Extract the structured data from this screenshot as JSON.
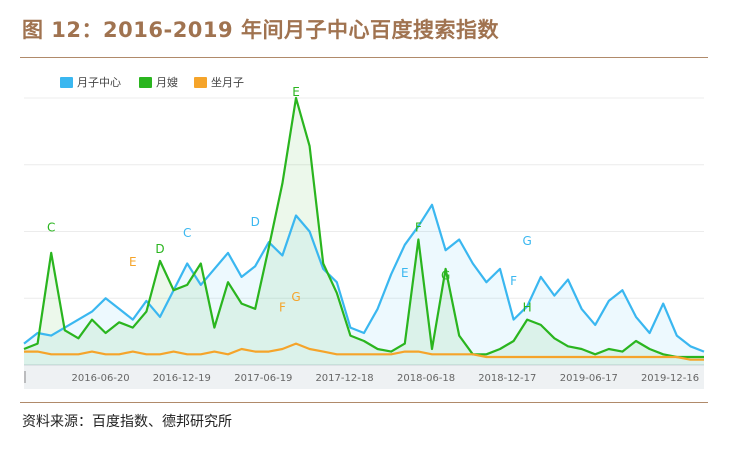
{
  "figure": {
    "title": "图 12：2016-2019 年间月子中心百度搜索指数",
    "source": "资料来源：百度指数、德邦研究所"
  },
  "colors": {
    "yuezi_zhongxin": "#3ab7f0",
    "yuesao": "#2ab51f",
    "zuo_yuezi": "#f5a42a",
    "title": "#a07350"
  },
  "chart_data": {
    "type": "line",
    "title": "",
    "xlabel": "",
    "ylabel": "",
    "legend_position": "top-left",
    "grid": "horizontal",
    "x_ticks": [
      "2016-06-20",
      "2016-12-19",
      "2017-06-19",
      "2017-12-18",
      "2018-06-18",
      "2018-12-17",
      "2019-06-17",
      "2019-12-16"
    ],
    "x_range": [
      "2016-01",
      "2020-03"
    ],
    "ylim": [
      0,
      100
    ],
    "series": [
      {
        "name": "月子中心",
        "color": "#3ab7f0",
        "fill": true,
        "points": [
          [
            "2016-01",
            8
          ],
          [
            "2016-02",
            12
          ],
          [
            "2016-03",
            11
          ],
          [
            "2016-04",
            14
          ],
          [
            "2016-05",
            17
          ],
          [
            "2016-06",
            20
          ],
          [
            "2016-07",
            25
          ],
          [
            "2016-08",
            21
          ],
          [
            "2016-09",
            17
          ],
          [
            "2016-10",
            24
          ],
          [
            "2016-11",
            18
          ],
          [
            "2016-12",
            28
          ],
          [
            "2017-01",
            38
          ],
          [
            "2017-02",
            30
          ],
          [
            "2017-03",
            36
          ],
          [
            "2017-04",
            42
          ],
          [
            "2017-05",
            33
          ],
          [
            "2017-06",
            37
          ],
          [
            "2017-07",
            46
          ],
          [
            "2017-08",
            41
          ],
          [
            "2017-09",
            56
          ],
          [
            "2017-10",
            50
          ],
          [
            "2017-11",
            36
          ],
          [
            "2017-12",
            31
          ],
          [
            "2018-01",
            14
          ],
          [
            "2018-02",
            12
          ],
          [
            "2018-03",
            21
          ],
          [
            "2018-04",
            34
          ],
          [
            "2018-05",
            45
          ],
          [
            "2018-06",
            52
          ],
          [
            "2018-07",
            60
          ],
          [
            "2018-08",
            43
          ],
          [
            "2018-09",
            47
          ],
          [
            "2018-10",
            38
          ],
          [
            "2018-11",
            31
          ],
          [
            "2018-12",
            36
          ],
          [
            "2019-01",
            17
          ],
          [
            "2019-02",
            22
          ],
          [
            "2019-03",
            33
          ],
          [
            "2019-04",
            26
          ],
          [
            "2019-05",
            32
          ],
          [
            "2019-06",
            21
          ],
          [
            "2019-07",
            15
          ],
          [
            "2019-08",
            24
          ],
          [
            "2019-09",
            28
          ],
          [
            "2019-10",
            18
          ],
          [
            "2019-11",
            12
          ],
          [
            "2019-12",
            23
          ],
          [
            "2020-01",
            11
          ],
          [
            "2020-02",
            7
          ],
          [
            "2020-03",
            5
          ]
        ]
      },
      {
        "name": "月嫂",
        "color": "#2ab51f",
        "fill": true,
        "points": [
          [
            "2016-01",
            6
          ],
          [
            "2016-02",
            8
          ],
          [
            "2016-03",
            42
          ],
          [
            "2016-04",
            13
          ],
          [
            "2016-05",
            10
          ],
          [
            "2016-06",
            17
          ],
          [
            "2016-07",
            12
          ],
          [
            "2016-08",
            16
          ],
          [
            "2016-09",
            14
          ],
          [
            "2016-10",
            20
          ],
          [
            "2016-11",
            39
          ],
          [
            "2016-12",
            28
          ],
          [
            "2017-01",
            30
          ],
          [
            "2017-02",
            38
          ],
          [
            "2017-03",
            14
          ],
          [
            "2017-04",
            31
          ],
          [
            "2017-05",
            23
          ],
          [
            "2017-06",
            21
          ],
          [
            "2017-07",
            44
          ],
          [
            "2017-08",
            68
          ],
          [
            "2017-09",
            100
          ],
          [
            "2017-10",
            82
          ],
          [
            "2017-11",
            38
          ],
          [
            "2017-12",
            27
          ],
          [
            "2018-01",
            11
          ],
          [
            "2018-02",
            9
          ],
          [
            "2018-03",
            6
          ],
          [
            "2018-04",
            5
          ],
          [
            "2018-05",
            8
          ],
          [
            "2018-06",
            47
          ],
          [
            "2018-07",
            6
          ],
          [
            "2018-08",
            36
          ],
          [
            "2018-09",
            11
          ],
          [
            "2018-10",
            4
          ],
          [
            "2018-11",
            4
          ],
          [
            "2018-12",
            6
          ],
          [
            "2019-01",
            9
          ],
          [
            "2019-02",
            17
          ],
          [
            "2019-03",
            15
          ],
          [
            "2019-04",
            10
          ],
          [
            "2019-05",
            7
          ],
          [
            "2019-06",
            6
          ],
          [
            "2019-07",
            4
          ],
          [
            "2019-08",
            6
          ],
          [
            "2019-09",
            5
          ],
          [
            "2019-10",
            9
          ],
          [
            "2019-11",
            6
          ],
          [
            "2019-12",
            4
          ],
          [
            "2020-01",
            3
          ],
          [
            "2020-02",
            3
          ],
          [
            "2020-03",
            3
          ]
        ]
      },
      {
        "name": "坐月子",
        "color": "#f5a42a",
        "fill": false,
        "points": [
          [
            "2016-01",
            5
          ],
          [
            "2016-02",
            5
          ],
          [
            "2016-03",
            4
          ],
          [
            "2016-04",
            4
          ],
          [
            "2016-05",
            4
          ],
          [
            "2016-06",
            5
          ],
          [
            "2016-07",
            4
          ],
          [
            "2016-08",
            4
          ],
          [
            "2016-09",
            5
          ],
          [
            "2016-10",
            4
          ],
          [
            "2016-11",
            4
          ],
          [
            "2016-12",
            5
          ],
          [
            "2017-01",
            4
          ],
          [
            "2017-02",
            4
          ],
          [
            "2017-03",
            5
          ],
          [
            "2017-04",
            4
          ],
          [
            "2017-05",
            6
          ],
          [
            "2017-06",
            5
          ],
          [
            "2017-07",
            5
          ],
          [
            "2017-08",
            6
          ],
          [
            "2017-09",
            8
          ],
          [
            "2017-10",
            6
          ],
          [
            "2017-11",
            5
          ],
          [
            "2017-12",
            4
          ],
          [
            "2018-01",
            4
          ],
          [
            "2018-02",
            4
          ],
          [
            "2018-03",
            4
          ],
          [
            "2018-04",
            4
          ],
          [
            "2018-05",
            5
          ],
          [
            "2018-06",
            5
          ],
          [
            "2018-07",
            4
          ],
          [
            "2018-08",
            4
          ],
          [
            "2018-09",
            4
          ],
          [
            "2018-10",
            4
          ],
          [
            "2018-11",
            3
          ],
          [
            "2018-12",
            3
          ],
          [
            "2019-01",
            3
          ],
          [
            "2019-02",
            3
          ],
          [
            "2019-03",
            3
          ],
          [
            "2019-04",
            3
          ],
          [
            "2019-05",
            3
          ],
          [
            "2019-06",
            3
          ],
          [
            "2019-07",
            3
          ],
          [
            "2019-08",
            3
          ],
          [
            "2019-09",
            3
          ],
          [
            "2019-10",
            3
          ],
          [
            "2019-11",
            3
          ],
          [
            "2019-12",
            3
          ],
          [
            "2020-01",
            3
          ],
          [
            "2020-02",
            2
          ],
          [
            "2020-03",
            2
          ]
        ]
      }
    ],
    "annotations": [
      {
        "text": "C",
        "date": "2016-03",
        "value": 50,
        "color": "#2ab51f"
      },
      {
        "text": "E",
        "date": "2016-09",
        "value": 37,
        "color": "#f5a42a"
      },
      {
        "text": "D",
        "date": "2016-11",
        "value": 42,
        "color": "#2ab51f"
      },
      {
        "text": "C",
        "date": "2017-01",
        "value": 48,
        "color": "#3ab7f0"
      },
      {
        "text": "D",
        "date": "2017-06",
        "value": 52,
        "color": "#3ab7f0"
      },
      {
        "text": "E",
        "date": "2017-09",
        "value": 106,
        "color": "#2ab51f"
      },
      {
        "text": "F",
        "date": "2017-08",
        "value": 20,
        "color": "#f5a42a"
      },
      {
        "text": "G",
        "date": "2017-09",
        "value": 24,
        "color": "#f5a42a"
      },
      {
        "text": "E",
        "date": "2018-05",
        "value": 33,
        "color": "#3ab7f0"
      },
      {
        "text": "F",
        "date": "2018-06",
        "value": 50,
        "color": "#2ab51f"
      },
      {
        "text": "G",
        "date": "2018-08",
        "value": 32,
        "color": "#2ab51f"
      },
      {
        "text": "F",
        "date": "2019-01",
        "value": 30,
        "color": "#3ab7f0"
      },
      {
        "text": "G",
        "date": "2019-02",
        "value": 45,
        "color": "#3ab7f0"
      },
      {
        "text": "H",
        "date": "2019-02",
        "value": 20,
        "color": "#2ab51f"
      }
    ]
  }
}
